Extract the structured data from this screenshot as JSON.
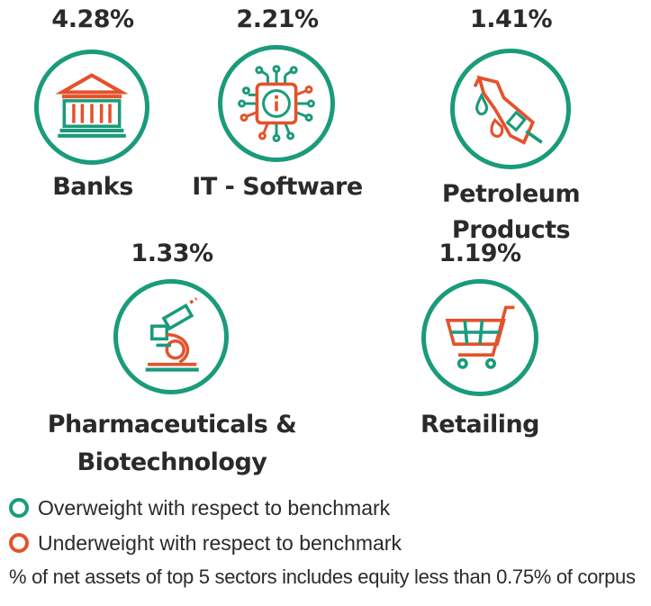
{
  "chart_data": {
    "type": "table",
    "caption": "% of net assets of top 5 sectors includes equity less than 0.75% of corpus",
    "sectors": [
      {
        "name": "Banks",
        "value": "4.28%",
        "icon": "bank-icon",
        "status": "Overweight with respect to benchmark"
      },
      {
        "name": "IT - Software",
        "value": "2.21%",
        "icon": "chip-icon",
        "status": "Overweight with respect to benchmark"
      },
      {
        "name": "Petroleum Products",
        "value": "1.41%",
        "icon": "fuel-nozzle-icon",
        "status": "Overweight with respect to benchmark"
      },
      {
        "name_lines": [
          "Pharmaceuticals &",
          "Biotechnology"
        ],
        "value": "1.33%",
        "icon": "microscope-icon",
        "status": "Overweight with respect to benchmark"
      },
      {
        "name": "Retailing",
        "value": "1.19%",
        "icon": "shopping-cart-icon",
        "status": "Overweight with respect to benchmark"
      }
    ]
  },
  "legend": {
    "overweight": "Overweight with respect to benchmark",
    "underweight": "Underweight with respect to benchmark"
  },
  "colors": {
    "overweight": "#1a9b7b",
    "underweight": "#e4522b",
    "text": "#2a2a2a"
  }
}
